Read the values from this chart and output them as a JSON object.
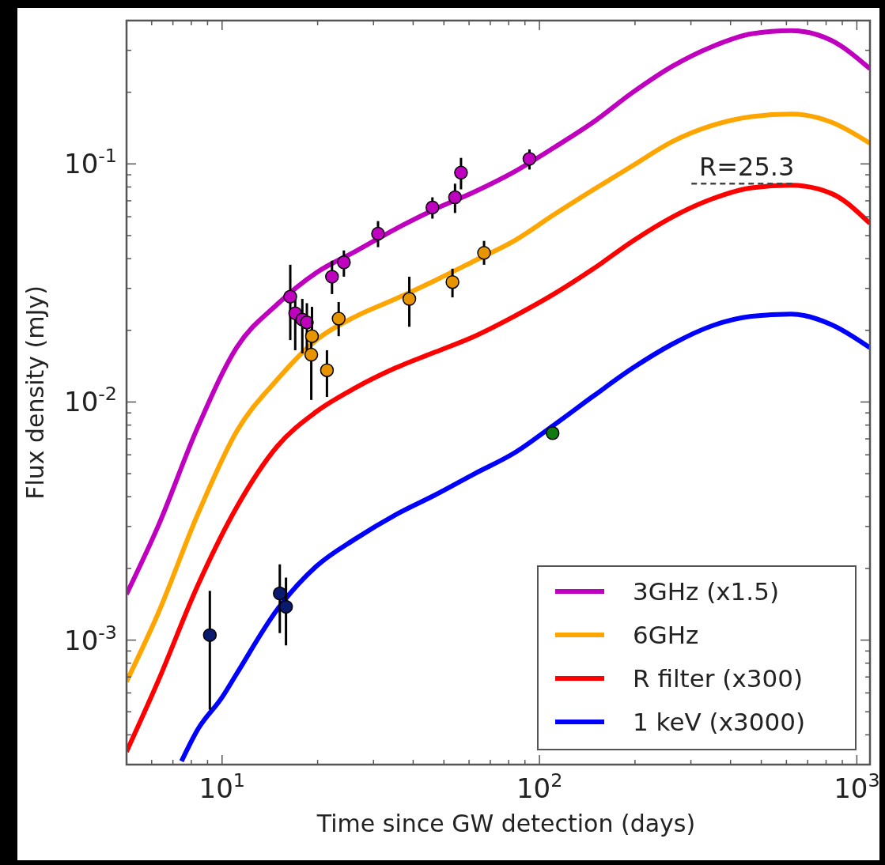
{
  "chart_data": {
    "type": "line",
    "xlabel": "Time since GW detection (days)",
    "ylabel": "Flux density (mJy)",
    "log": "xy",
    "xlim": [
      5,
      1100
    ],
    "ylim": [
      0.0003,
      0.4
    ],
    "xticks": [
      {
        "value": 6,
        "label": null
      },
      {
        "value": 7,
        "label": null
      },
      {
        "value": 8,
        "label": null
      },
      {
        "value": 9,
        "label": null
      },
      {
        "value": 10,
        "label": "10$^{1}$"
      },
      {
        "value": 20,
        "label": null
      },
      {
        "value": 30,
        "label": null
      },
      {
        "value": 40,
        "label": null
      },
      {
        "value": 50,
        "label": null
      },
      {
        "value": 60,
        "label": null
      },
      {
        "value": 70,
        "label": null
      },
      {
        "value": 80,
        "label": null
      },
      {
        "value": 90,
        "label": null
      },
      {
        "value": 100,
        "label": "10$^{2}$"
      },
      {
        "value": 200,
        "label": null
      },
      {
        "value": 300,
        "label": null
      },
      {
        "value": 400,
        "label": null
      },
      {
        "value": 500,
        "label": null
      },
      {
        "value": 600,
        "label": null
      },
      {
        "value": 700,
        "label": null
      },
      {
        "value": 800,
        "label": null
      },
      {
        "value": 900,
        "label": null
      },
      {
        "value": 1000,
        "label": "10$^{3}$"
      }
    ],
    "yticks": [
      {
        "value": 0.0004,
        "label": null
      },
      {
        "value": 0.0005,
        "label": null
      },
      {
        "value": 0.0006,
        "label": null
      },
      {
        "value": 0.0007,
        "label": null
      },
      {
        "value": 0.0008,
        "label": null
      },
      {
        "value": 0.0009,
        "label": null
      },
      {
        "value": 0.001,
        "label": "10$^{-3}$"
      },
      {
        "value": 0.002,
        "label": null
      },
      {
        "value": 0.003,
        "label": null
      },
      {
        "value": 0.004,
        "label": null
      },
      {
        "value": 0.005,
        "label": null
      },
      {
        "value": 0.006,
        "label": null
      },
      {
        "value": 0.007,
        "label": null
      },
      {
        "value": 0.008,
        "label": null
      },
      {
        "value": 0.009,
        "label": null
      },
      {
        "value": 0.01,
        "label": "10$^{-2}$"
      },
      {
        "value": 0.02,
        "label": null
      },
      {
        "value": 0.03,
        "label": null
      },
      {
        "value": 0.04,
        "label": null
      },
      {
        "value": 0.05,
        "label": null
      },
      {
        "value": 0.06,
        "label": null
      },
      {
        "value": 0.07,
        "label": null
      },
      {
        "value": 0.08,
        "label": null
      },
      {
        "value": 0.09,
        "label": null
      },
      {
        "value": 0.1,
        "label": "10$^{-1}$"
      },
      {
        "value": 0.2,
        "label": null
      },
      {
        "value": 0.3,
        "label": null
      }
    ],
    "grid": false,
    "legend": "bottom right",
    "line_style": "solid",
    "annotations": [
      {
        "text": "R=25.3",
        "x": 450,
        "y": 0.0826
      }
    ],
    "series": [
      {
        "name": "3GHz (x1.5)",
        "color": "#bf00bf",
        "x": [
          5,
          6.28,
          8.37,
          11.1,
          14.9,
          19.8,
          26.4,
          35.2,
          46.9,
          62.5,
          83.2,
          111,
          148,
          197,
          262,
          350,
          466,
          621,
          828,
          1100
        ],
        "values": [
          0.00156,
          0.003,
          0.0078,
          0.0169,
          0.0257,
          0.0349,
          0.043,
          0.0533,
          0.0646,
          0.0764,
          0.0926,
          0.117,
          0.15,
          0.2,
          0.257,
          0.311,
          0.352,
          0.363,
          0.331,
          0.251
        ]
      },
      {
        "name": "6GHz",
        "color": "#ffa500",
        "x": [
          5,
          6.28,
          8.37,
          11.1,
          14.9,
          19.8,
          26.4,
          35.2,
          46.9,
          62.5,
          83.2,
          111,
          148,
          197,
          262,
          350,
          466,
          621,
          828,
          1100
        ],
        "values": [
          0.00067,
          0.00129,
          0.00336,
          0.0075,
          0.0124,
          0.0182,
          0.0229,
          0.0271,
          0.0324,
          0.0392,
          0.0475,
          0.0612,
          0.078,
          0.0985,
          0.124,
          0.145,
          0.158,
          0.162,
          0.15,
          0.122
        ]
      },
      {
        "name": "R filter (x300)",
        "color": "#ff0000",
        "x": [
          5,
          6.28,
          8.37,
          11.1,
          14.9,
          19.8,
          26.4,
          35.2,
          46.9,
          62.5,
          83.2,
          111,
          148,
          197,
          262,
          350,
          466,
          621,
          828,
          1100
        ],
        "values": [
          0.00034,
          0.00067,
          0.00169,
          0.0036,
          0.0065,
          0.0091,
          0.0115,
          0.0139,
          0.0162,
          0.0189,
          0.0229,
          0.0284,
          0.0363,
          0.0475,
          0.0598,
          0.0713,
          0.0794,
          0.0813,
          0.0753,
          0.0562
        ]
      },
      {
        "name": "1 keV (x3000)",
        "color": "#0000ff",
        "x": [
          7.45,
          8.37,
          10,
          11.1,
          14.9,
          19.8,
          26.4,
          35.2,
          46.9,
          62.5,
          83.2,
          111,
          148,
          197,
          262,
          350,
          466,
          621,
          828,
          1100
        ],
        "values": [
          0.00031,
          0.00042,
          0.000575,
          0.00072,
          0.00134,
          0.00204,
          0.00267,
          0.00336,
          0.00407,
          0.005,
          0.0061,
          0.008,
          0.0106,
          0.0139,
          0.0175,
          0.0209,
          0.0229,
          0.0234,
          0.0212,
          0.0169
        ]
      },
      {
        "type": "scatter",
        "marker": "circle",
        "color": "#bf00bf",
        "x": [
          16.4,
          17,
          17.9,
          18.5,
          22.2,
          24.2,
          31,
          46,
          54.2,
          56.6,
          93
        ],
        "values": [
          0.0277,
          0.0236,
          0.0222,
          0.0216,
          0.0336,
          0.0386,
          0.0509,
          0.0656,
          0.0724,
          0.0919,
          0.105
        ],
        "errors": [
          [
            0.0182,
            0.0377
          ],
          [
            0.0165,
            0.0284
          ],
          [
            0.016,
            0.0271
          ],
          [
            0.0165,
            0.026
          ],
          [
            0.0284,
            0.0392
          ],
          [
            0.0336,
            0.0433
          ],
          [
            0.0447,
            0.0575
          ],
          [
            0.0589,
            0.0724
          ],
          [
            0.0622,
            0.0826
          ],
          [
            0.0782,
            0.106
          ],
          [
            0.0947,
            0.115
          ]
        ]
      },
      {
        "type": "scatter",
        "marker": "circle",
        "color": "#e69500",
        "x": [
          19.2,
          19.1,
          21.4,
          23.3,
          38.9,
          53.2,
          66.9
        ],
        "values": [
          0.0189,
          0.0158,
          0.0136,
          0.0224,
          0.0271,
          0.0319,
          0.0423
        ],
        "errors": [
          [
            0.0189,
            0.0251
          ],
          [
            0.0102,
            0.0202
          ],
          [
            0.0105,
            0.0165
          ],
          [
            0.0189,
            0.0263
          ],
          [
            0.0207,
            0.0336
          ],
          [
            0.0275,
            0.0363
          ],
          [
            0.0377,
            0.0475
          ]
        ]
      },
      {
        "type": "scatter",
        "marker": "circle",
        "color": "#0a1a6e",
        "x": [
          9.15,
          15.2,
          15.9
        ],
        "values": [
          0.00105,
          0.00157,
          0.00138
        ],
        "errors": [
          [
            0.00051,
            0.00161
          ],
          [
            0.00107,
            0.00208
          ],
          [
            0.00095,
            0.00183
          ]
        ]
      },
      {
        "type": "scatter",
        "marker": "circle",
        "color": "#117a11",
        "x": [
          110
        ],
        "values": [
          0.0074
        ]
      }
    ]
  }
}
